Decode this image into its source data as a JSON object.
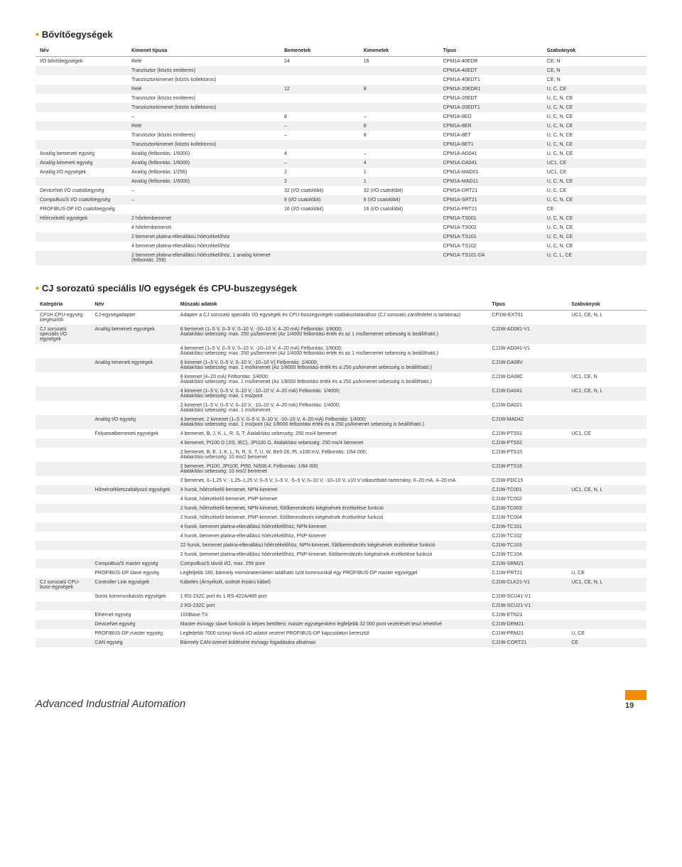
{
  "section1": {
    "title": "Bővítőegységek",
    "headers": [
      "Név",
      "Kimenet típusa",
      "Bemenetek",
      "Kimenetek",
      "Típus",
      "Szabványok"
    ],
    "colWidths": [
      "15%",
      "25%",
      "13%",
      "13%",
      "17%",
      "17%"
    ],
    "rows": [
      [
        "I/O bővítőegységek",
        "Relé",
        "24",
        "16",
        "CPM1A-40EDR",
        "CE, N"
      ],
      [
        "",
        "Tranzisztor (közös emitteres)",
        "",
        "",
        "CPM1A-40EDT",
        "CE, N"
      ],
      [
        "",
        "Tranzisztorkimenet (közös kollektoros)",
        "",
        "",
        "CPM1A-40EDT1",
        "CE, N"
      ],
      [
        "",
        "Relé",
        "12",
        "8",
        "CPM1A-20EDR1",
        "U, C, CE"
      ],
      [
        "",
        "Tranzisztor (közös emitteres)",
        "",
        "",
        "CPM1A-20EDT",
        "U, C, N, CE"
      ],
      [
        "",
        "Tranzisztorkimenet (közös kollektoros)",
        "",
        "",
        "CPM1A-20EDT1",
        "U, C, N, CE"
      ],
      [
        "",
        "–",
        "8",
        "–",
        "CPM1A-8ED",
        "U, C, N, CE"
      ],
      [
        "",
        "Relé",
        "–",
        "8",
        "CPM1A-8ER",
        "U, C, N, CE"
      ],
      [
        "",
        "Tranzisztor (közös emitteres)",
        "–",
        "8",
        "CPM1A-8ET",
        "U, C, N, CE"
      ],
      [
        "",
        "Tranzisztorkimenet (közös kollektoros)",
        "",
        "",
        "CPM1A-8ET1",
        "U, C, N, CE"
      ],
      [
        "Analóg bemeneti egység",
        "Analóg (felbontás: 1/6000)",
        "4",
        "–",
        "CPM1A-AD041",
        "U, C, N, CE"
      ],
      [
        "Analóg kimeneti egység",
        "Analóg (felbontás: 1/6000)",
        "–",
        "4",
        "CPM1A-DA041",
        "UC1, CE"
      ],
      [
        "Analóg I/O egységek",
        "Analóg (felbontás: 1/256)",
        "2",
        "1",
        "CPM1A-MAD01",
        "UC1, CE"
      ],
      [
        "",
        "Analóg (felbontás: 1/6000)",
        "2",
        "1",
        "CPM1A-MAD11",
        "U, C, N, CE"
      ],
      [
        "DeviceNet I/O csatolóegység",
        "–",
        "32 (I/O csatolóbit)",
        "32 (I/O csatolóbit)",
        "CPM1A-DRT21",
        "U, C, CE"
      ],
      [
        "CompoBus/S I/O csatolóegység",
        "–",
        "8 (I/O csatolóbit)",
        "8 (I/O csatolóbit)",
        "CPM1A-SRT21",
        "U, C, N, CE"
      ],
      [
        "PROFIBUS-DP I/O csatolóegység",
        "",
        "16 (I/O csatolóbit)",
        "16 (I/O csatolóbit)",
        "CPM1A-PRT21",
        "CE"
      ],
      [
        "Hőérzékelő egységek",
        "2 hőelembemenet",
        "",
        "",
        "CPM1A-TS001",
        "U, C, N, CE"
      ],
      [
        "",
        "4 hőelembemenet",
        "",
        "",
        "CPM1A-TS002",
        "U, C, N, CE"
      ],
      [
        "",
        "2 bemenet platina-ellenállású hőérzékelőhöz",
        "",
        "",
        "CPM1A-TS101",
        "U, C, N, CE"
      ],
      [
        "",
        "4 bemenet platina-ellenállású hőérzékelőhöz",
        "",
        "",
        "CPM1A-TS102",
        "U, C, N, CE"
      ],
      [
        "",
        "2 bemenet platina-ellenállású hőérzékelőhöz, 1 analóg kimenet (felbontás: 256)",
        "",
        "",
        "CPM1A-TS101-DA",
        "U, C, L, CE"
      ]
    ]
  },
  "section2": {
    "title": "CJ sorozatú speciális I/O egységek és CPU-buszegységek",
    "headers": [
      "Kategória",
      "Név",
      "Műszaki adatok",
      "Típus",
      "Szabványok"
    ],
    "colWidths": [
      "9%",
      "14%",
      "51%",
      "13%",
      "13%"
    ],
    "rows": [
      [
        "CP1H CPU-egység kiegészítői",
        "CJ-egységadapter",
        "Adapter a CJ sorozatú speciális I/O egységek és CPU-buszegységek csatlakoztatásához (CJ sorozatú zárófedelet is tartalmaz)",
        "CP1W-EXT01",
        "UC1, CE, N, L"
      ],
      [
        "CJ sorozatú speciális I/O egységek",
        "Analóg bemeneti egységek",
        "8 bemenet (1–5 V, 0–5 V, 0–10 V, -10–10 V, 4–20 mA) Felbontás: 1/8000;\nÁtalakítási sebesség: max. 250 µs/bemenet (Az 1/4000 felbontási érték és az 1 ms/bemenet sebesség is beállítható.)",
        "CJ1W-AD081-V1",
        ""
      ],
      [
        "",
        "",
        "4 bemenet (1–5 V, 0–5 V, 0–10 V, -10–10 V, 4–20 mA) Felbontás: 1/8000;\nÁtalakítási sebesség: max. 250 µs/bemenet (Az 1/4000 felbontási érték és az 1 ms/bemenet sebesség is beállítható.)",
        "CJ1W-AD041-V1",
        ""
      ],
      [
        "",
        "Analóg kimeneti egységek",
        "8 kimenet (1–5 V, 0–5 V, 0–10 V, -10–10 V) Felbontás: 1/4000;\nÁtalakítási sebesség: max. 1 ms/kimenet (Az 1/8000 felbontási érték és a 250 µs/kimenet sebesség is beállítható.)",
        "CJ1W-DA08V",
        ""
      ],
      [
        "",
        "",
        "8 kimenet (4–20 mA) Felbontás: 1/4000;\nÁtalakítási sebesség: max. 1 ms/kimenet (Az 1/8000 felbontási érték és a 250 µs/kimenet sebesség is beállítható.)",
        "CJ1W-DA08C",
        "UC1, CE, N"
      ],
      [
        "",
        "",
        "4 kimenet (1–5 V, 0–5 V, 0–10 V, -10–10 V, 4–20 mA) Felbontás: 1/4000;\nÁtalakítási sebesség: max. 1 ms/pont",
        "CJ1W-DA041",
        "UC1, CE, N, L"
      ],
      [
        "",
        "",
        "2 kimenet (1–5 V, 0–5 V, 0–10 V, -10–10 V, 4–20 mA) Felbontás: 1/4000;\nÁtalakítási sebesség: max. 1 ms/kimenet",
        "CJ1W-DA021",
        ""
      ],
      [
        "",
        "Analóg I/O egység",
        "4 bemenet, 2 kimenet (1–5 V, 0–5 V, 0–10 V, -10–10 V, 4–20 mA) Felbontás: 1/4000;\nÁtalakítási sebesség: max. 1 ms/pont (Az 1/8000 felbontási érték és a 250 µs/kimenet sebesség is beállítható.)",
        "CJ1W-MAD42",
        ""
      ],
      [
        "",
        "Folyamatbemeneti egységek",
        "4 bemenet, B, J, K, L, R, S, T; Átalakítási sebesség: 250 ms/4 bemenet",
        "CJ1W-PTS51",
        "UC1, CE"
      ],
      [
        "",
        "",
        "4 bemenet, Pt100 Ω (JIS, IEC), JPt100 Ω, Átalakítási sebesség: 250 ms/4 bemenet",
        "CJ1W-PTS52",
        ""
      ],
      [
        "",
        "",
        "2 bemenet, B, E, J, K, L, N, R, S, T, U, W, Re5-26, PL ±100 mV, Felbontás: 1/64 000;\nÁtalakítási sebesség: 10 ms/2 bemenet",
        "CJ1W-PTS15",
        ""
      ],
      [
        "",
        "",
        "2 bemenet, Pt100, JPt100, Pt50, Ni508.4; Felbontás: 1/64 000;\nÁtalakítási sebesség: 10 ms/2 bemenet",
        "CJ1W-PTS16",
        ""
      ],
      [
        "",
        "",
        "2 bemenet, 0–1,25 V, -1,25–1,25 V, 0–5 V, 1–5 V, -5–5 V, 0–10 V, -10–10 V, ±10 V választható tartomány, 0–20 mA, 4–20 mA",
        "CJ1W-PDC15",
        ""
      ],
      [
        "",
        "Hőmérsékletszabályozó egységek",
        "4 hurok, hőérzékelő-bemenet, NPN-kimenet",
        "CJ1W-TC001",
        "UC1, CE, N, L"
      ],
      [
        "",
        "",
        "4 hurok, hőérzékelő-bemenet, PNP-kimenet",
        "CJ1W-TC002",
        ""
      ],
      [
        "",
        "",
        "2 hurok, hőérzékelő-bemenet, NPN-kimenet, fűtőberendezés kiégésének érzékelése funkció",
        "CJ1W-TC003",
        ""
      ],
      [
        "",
        "",
        "2 hurok, hőérzékelő-bemenet, PNP-kimenet, fűtőberendezés kiégésének érzékelése funkció",
        "CJ1W-TC004",
        ""
      ],
      [
        "",
        "",
        "4 hurok, bemenet platina-ellenállású hőérzékelőhöz, NPN-kimenet",
        "CJ1W-TC101",
        ""
      ],
      [
        "",
        "",
        "4 hurok, bemenet platina-ellenállású hőérzékelőhöz, PNP-kimenet",
        "CJ1W-TC102",
        ""
      ],
      [
        "",
        "",
        "22 hurok, bemenet platina-ellenállású hőérzékelőhöz, NPN-kimenet, fűtőberendezés kiégésének érzékelése funkció",
        "CJ1W-TC103",
        ""
      ],
      [
        "",
        "",
        "2 hurok, bemenet platina-ellenállású hőérzékelőhöz, PNP-kimenet, fűtőberendezés kiégésének érzékelése funkció",
        "CJ1W-TC104",
        ""
      ],
      [
        "",
        "CompoBus/S master egység",
        "CompoBus/S távoli I/O, max. 256 pont",
        "CJ1W-SRM21",
        ""
      ],
      [
        "",
        "PROFIBUS-DP slave egység",
        "Legfeljebb 180, bármely memóriaterületen található szót kommunikál egy PROFIBUS-DP master egységgel",
        "CJ1W-PRT21",
        "U, CE"
      ],
      [
        "CJ sorozatú CPU-busz-egységek",
        "Controller Link egységek",
        "Kábeles (Árnyékolt, sodrott érpárú kábel)",
        "CJ1W-CLK21-V1",
        "UC1, CE, N, L"
      ],
      [
        "",
        "Soros kommunikációs egységek",
        "1 RS-232C port és 1 RS-422A/485 port",
        "CJ1W-SCU41-V1",
        ""
      ],
      [
        "",
        "",
        "2 RS-232C port",
        "CJ1W-SCU21-V1",
        ""
      ],
      [
        "",
        "Ethernet egység",
        "100Base-TX",
        "CJ1W-ETN21",
        ""
      ],
      [
        "",
        "DeviceNet egység",
        "Master és/vagy slave funkciót is képes betölteni; master egységenként legfeljebb 32 000 pont vezérlését teszi lehetővé",
        "CJ1W-DRM21",
        ""
      ],
      [
        "",
        "PROFIBUS-DP master egység",
        "Legfeljebb 7000 szónyi távoli I/O adatot vezérel PROFIBUS-DP kapcsolaton keresztül",
        "CJ1W-PRM21",
        "U, CE"
      ],
      [
        "",
        "CAN egység",
        "Bármely CAN-üzenet küldésére és/vagy fogadására alkalmas",
        "CJ1W-CORT21",
        "CE"
      ]
    ]
  },
  "footer": {
    "left": "Advanced Industrial Automation",
    "pageNum": "19"
  }
}
